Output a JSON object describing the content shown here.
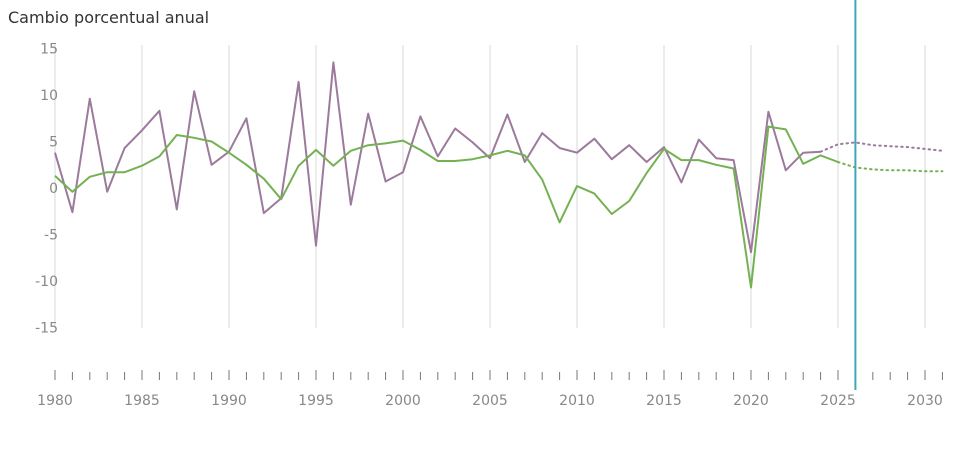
{
  "chart_data": {
    "type": "line",
    "title": "Cambio porcentual anual",
    "xlabel": "",
    "ylabel": "",
    "xlim": [
      1980,
      2031
    ],
    "ylim": [
      -15,
      15
    ],
    "y_ticks": [
      "15",
      "10",
      "5",
      "0",
      "-5",
      "-10",
      "-15"
    ],
    "x_ticks": [
      "1980",
      "1985",
      "1990",
      "1995",
      "2000",
      "2005",
      "2010",
      "2015",
      "2020",
      "2025",
      "2030"
    ],
    "grid": true,
    "legend": "none",
    "current_year_marker": 2026,
    "series": [
      {
        "color": "#9b7a9c",
        "x": [
          1980,
          1981,
          1982,
          1983,
          1984,
          1985,
          1986,
          1987,
          1988,
          1989,
          1990,
          1991,
          1992,
          1993,
          1994,
          1995,
          1996,
          1997,
          1998,
          1999,
          2000,
          2001,
          2002,
          2003,
          2004,
          2005,
          2006,
          2007,
          2008,
          2009,
          2010,
          2011,
          2012,
          2013,
          2014,
          2015,
          2016,
          2017,
          2018,
          2019,
          2020,
          2021,
          2022,
          2023,
          2024
        ],
        "values": [
          3.8,
          -2.6,
          9.6,
          -0.4,
          4.3,
          6.2,
          8.3,
          -2.3,
          10.4,
          2.5,
          3.9,
          7.5,
          -2.7,
          -1.1,
          11.4,
          -6.2,
          13.5,
          -1.8,
          8.0,
          0.7,
          1.7,
          7.7,
          3.4,
          6.4,
          4.9,
          3.2,
          7.9,
          2.8,
          5.9,
          4.3,
          3.8,
          5.3,
          3.1,
          4.6,
          2.8,
          4.4,
          0.6,
          5.2,
          3.2,
          3.0,
          -6.9,
          8.2,
          1.9,
          3.8,
          3.9
        ]
      },
      {
        "color": "#74b152",
        "x": [
          1980,
          1981,
          1982,
          1983,
          1984,
          1985,
          1986,
          1987,
          1988,
          1989,
          1990,
          1991,
          1992,
          1993,
          1994,
          1995,
          1996,
          1997,
          1998,
          1999,
          2000,
          2001,
          2002,
          2003,
          2004,
          2005,
          2006,
          2007,
          2008,
          2009,
          2010,
          2011,
          2012,
          2013,
          2014,
          2015,
          2016,
          2017,
          2018,
          2019,
          2020,
          2021,
          2022,
          2023,
          2024,
          2025
        ],
        "values": [
          1.3,
          -0.4,
          1.2,
          1.7,
          1.7,
          2.4,
          3.4,
          5.7,
          5.4,
          5.0,
          3.8,
          2.5,
          1.0,
          -1.2,
          2.4,
          4.1,
          2.4,
          4.0,
          4.6,
          4.8,
          5.1,
          4.1,
          2.9,
          2.9,
          3.1,
          3.5,
          4.0,
          3.5,
          0.9,
          -3.7,
          0.2,
          -0.6,
          -2.8,
          -1.4,
          1.6,
          4.2,
          3.0,
          3.0,
          2.5,
          2.1,
          -10.7,
          6.6,
          6.3,
          2.6,
          3.5,
          2.8
        ]
      },
      {
        "color": "#9b7a9c",
        "style": "dotted",
        "x": [
          2024,
          2025,
          2026,
          2027,
          2028,
          2029,
          2030,
          2031
        ],
        "values": [
          3.9,
          4.7,
          4.9,
          4.6,
          4.5,
          4.4,
          4.2,
          4.0
        ]
      },
      {
        "color": "#74b152",
        "style": "dotted",
        "x": [
          2025,
          2026,
          2027,
          2028,
          2029,
          2030,
          2031
        ],
        "values": [
          2.8,
          2.2,
          2.0,
          1.9,
          1.9,
          1.8,
          1.8
        ]
      }
    ]
  },
  "colors": {
    "grid": "#d9d9d9",
    "axis_text": "#888888",
    "marker_line": "#3fa8b8"
  }
}
